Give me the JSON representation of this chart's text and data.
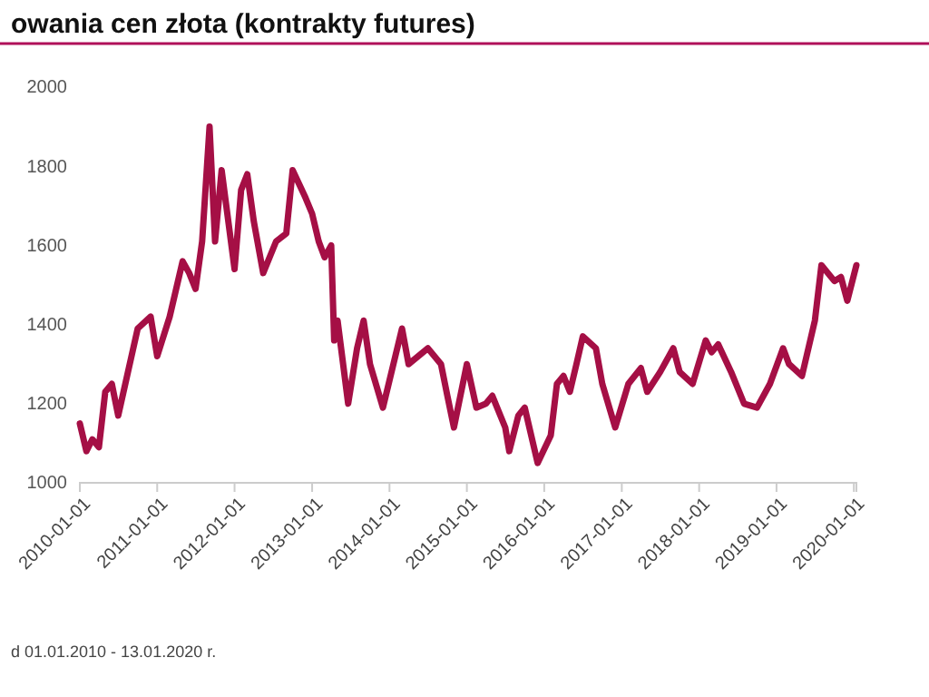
{
  "chart_data": {
    "type": "line",
    "title": "owania cen złota (kontrakty futures)",
    "x": [
      "2010-01",
      "2010-02",
      "2010-03",
      "2010-04",
      "2010-05",
      "2010-06",
      "2010-07",
      "2010-10",
      "2010-12",
      "2011-01",
      "2011-03",
      "2011-05",
      "2011-06",
      "2011-07",
      "2011-08",
      "2011-09-05",
      "2011-10",
      "2011-11",
      "2012-01",
      "2012-02",
      "2012-03",
      "2012-04",
      "2012-05-15",
      "2012-07-15",
      "2012-09",
      "2012-10",
      "2012-12",
      "2013-01",
      "2013-02",
      "2013-03",
      "2013-04-01",
      "2013-04-15",
      "2013-05",
      "2013-06-20",
      "2013-08",
      "2013-09",
      "2013-10",
      "2013-12",
      "2014-03",
      "2014-04",
      "2014-07",
      "2014-09",
      "2014-10",
      "2014-11",
      "2015-01",
      "2015-02-15",
      "2015-04",
      "2015-05",
      "2015-07",
      "2015-07-20",
      "2015-09",
      "2015-10",
      "2015-12",
      "2016-02",
      "2016-03",
      "2016-04",
      "2016-05",
      "2016-06",
      "2016-07",
      "2016-09",
      "2016-10",
      "2016-12",
      "2017-02",
      "2017-04",
      "2017-05",
      "2017-07",
      "2017-09",
      "2017-10",
      "2017-12",
      "2018-02",
      "2018-03",
      "2018-04",
      "2018-06",
      "2018-08",
      "2018-10",
      "2018-12",
      "2019-02",
      "2019-03",
      "2019-05",
      "2019-07",
      "2019-08",
      "2019-10",
      "2019-11",
      "2019-12",
      "2020-01-13"
    ],
    "series": [
      {
        "color": "#a50f45",
        "values": [
          1150,
          1080,
          1110,
          1090,
          1230,
          1250,
          1170,
          1390,
          1420,
          1320,
          1420,
          1560,
          1530,
          1490,
          1610,
          1900,
          1610,
          1790,
          1540,
          1740,
          1780,
          1660,
          1530,
          1610,
          1630,
          1790,
          1720,
          1680,
          1610,
          1570,
          1600,
          1360,
          1410,
          1200,
          1340,
          1410,
          1300,
          1190,
          1390,
          1300,
          1340,
          1300,
          1220,
          1140,
          1300,
          1190,
          1200,
          1220,
          1140,
          1080,
          1170,
          1190,
          1050,
          1120,
          1250,
          1270,
          1230,
          1300,
          1370,
          1340,
          1250,
          1140,
          1250,
          1290,
          1230,
          1280,
          1340,
          1280,
          1250,
          1360,
          1330,
          1350,
          1280,
          1200,
          1190,
          1250,
          1340,
          1300,
          1270,
          1410,
          1550,
          1510,
          1520,
          1460,
          1550
        ]
      }
    ],
    "xlim": [
      "2010-01-01",
      "2020-01-13"
    ],
    "xticks": [
      {
        "value": "2010-01-01",
        "label": "2010-01-01"
      },
      {
        "value": "2011-01-01",
        "label": "2011-01-01"
      },
      {
        "value": "2012-01-01",
        "label": "2012-01-01"
      },
      {
        "value": "2013-01-01",
        "label": "2013-01-01"
      },
      {
        "value": "2014-01-01",
        "label": "2014-01-01"
      },
      {
        "value": "2015-01-01",
        "label": "2015-01-01"
      },
      {
        "value": "2016-01-01",
        "label": "2016-01-01"
      },
      {
        "value": "2017-01-01",
        "label": "2017-01-01"
      },
      {
        "value": "2018-01-01",
        "label": "2018-01-01"
      },
      {
        "value": "2019-01-01",
        "label": "2019-01-01"
      },
      {
        "value": "2020-01-01",
        "label": "2020-01-01"
      }
    ],
    "ylim": [
      1000,
      2000
    ],
    "yticks": [
      1000,
      1200,
      1400,
      1600,
      1800,
      2000
    ],
    "annotations": [
      "d 01.01.2010 - 13.01.2020 r."
    ]
  }
}
